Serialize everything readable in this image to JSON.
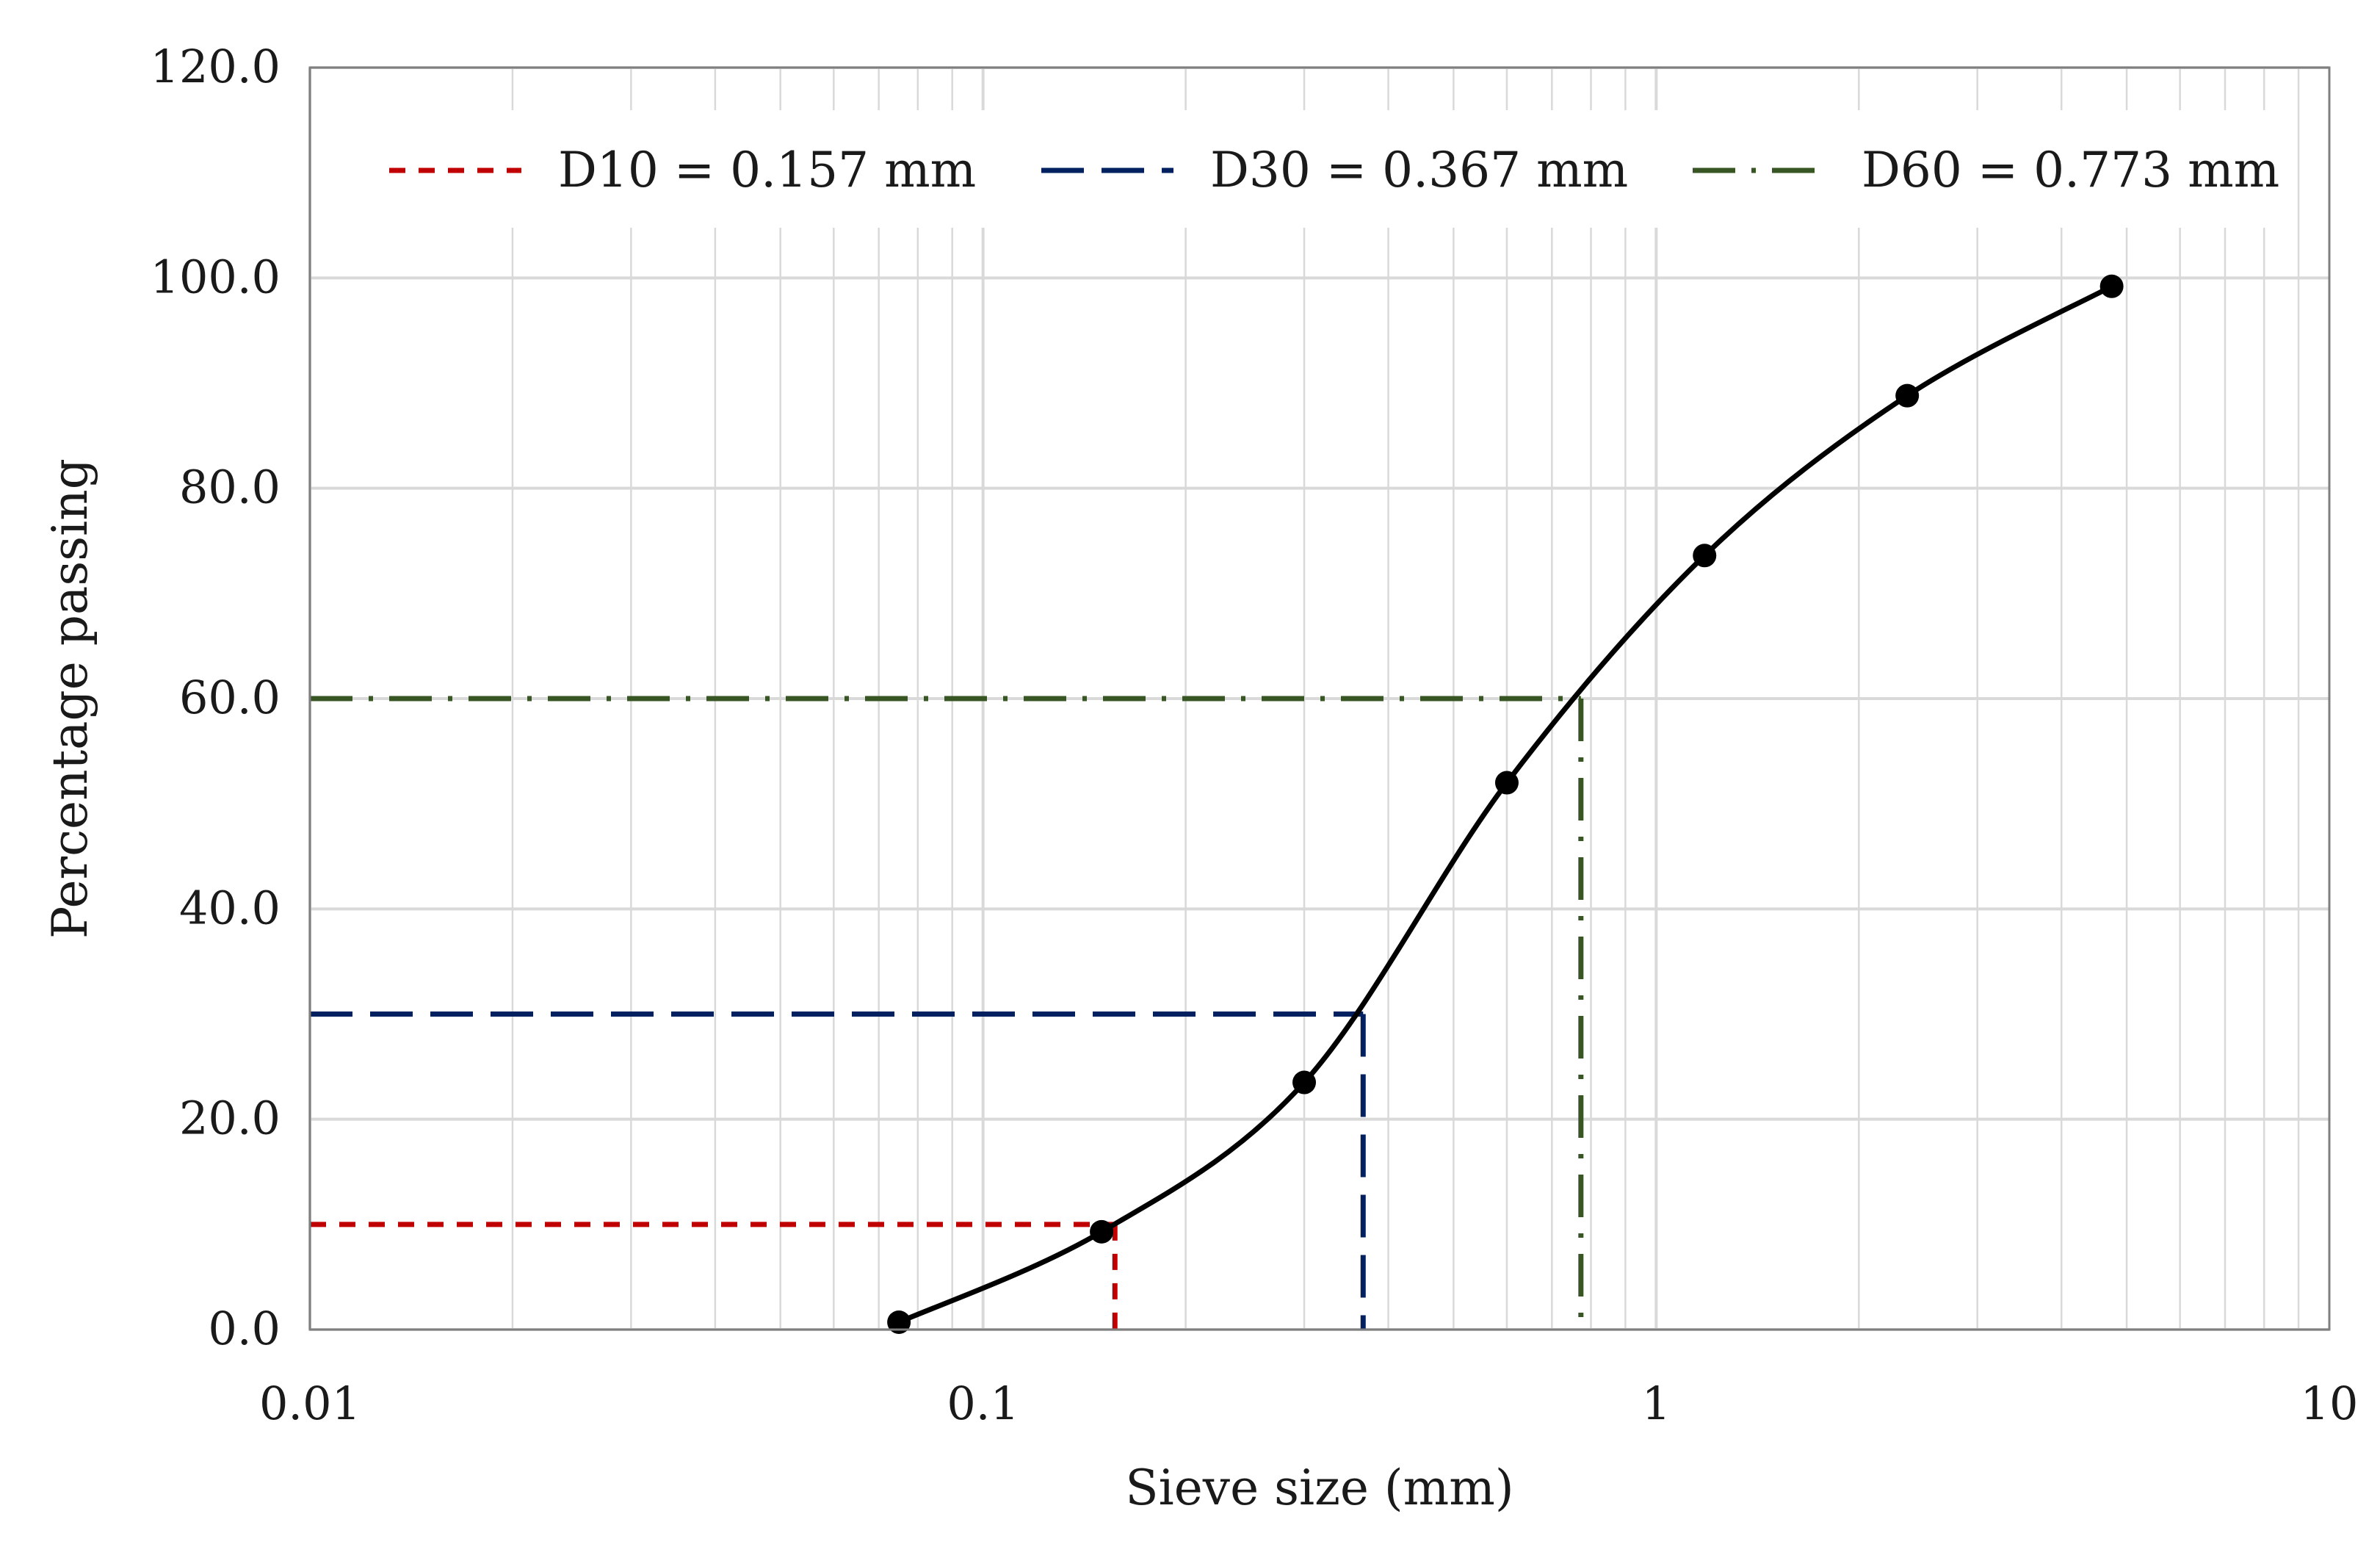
{
  "chart_data": {
    "type": "line",
    "xlabel": "Sieve size (mm)",
    "ylabel": "Percentage passing",
    "x_scale": "log",
    "xlim": [
      0.01,
      10
    ],
    "ylim": [
      0,
      120
    ],
    "x_ticks": [
      0.01,
      0.1,
      1,
      10
    ],
    "x_tick_labels": [
      "0.01",
      "0.1",
      "1",
      "10"
    ],
    "y_ticks": [
      0,
      20,
      40,
      60,
      80,
      100,
      120
    ],
    "y_tick_labels": [
      "0.0",
      "20.0",
      "40.0",
      "60.0",
      "80.0",
      "100.0",
      "120.0"
    ],
    "grid": true,
    "legend_position": "top",
    "series": [
      {
        "x": [
          0.075,
          0.15,
          0.3,
          0.6,
          1.18,
          2.36,
          4.75
        ],
        "y": [
          0.7,
          9.3,
          23.5,
          52.0,
          73.6,
          88.8,
          99.2
        ],
        "color": "#000000",
        "markers": true,
        "smooth": true
      }
    ],
    "reference_lines": [
      {
        "label": "D10 = 0.157 mm",
        "x": 0.157,
        "y": 10,
        "color": "#c00000",
        "style": "dash"
      },
      {
        "label": "D30 = 0.367 mm",
        "x": 0.367,
        "y": 30,
        "color": "#002060",
        "style": "long-dash"
      },
      {
        "label": "D60 = 0.773 mm",
        "x": 0.773,
        "y": 60,
        "color": "#375623",
        "style": "dash-dot"
      }
    ]
  }
}
